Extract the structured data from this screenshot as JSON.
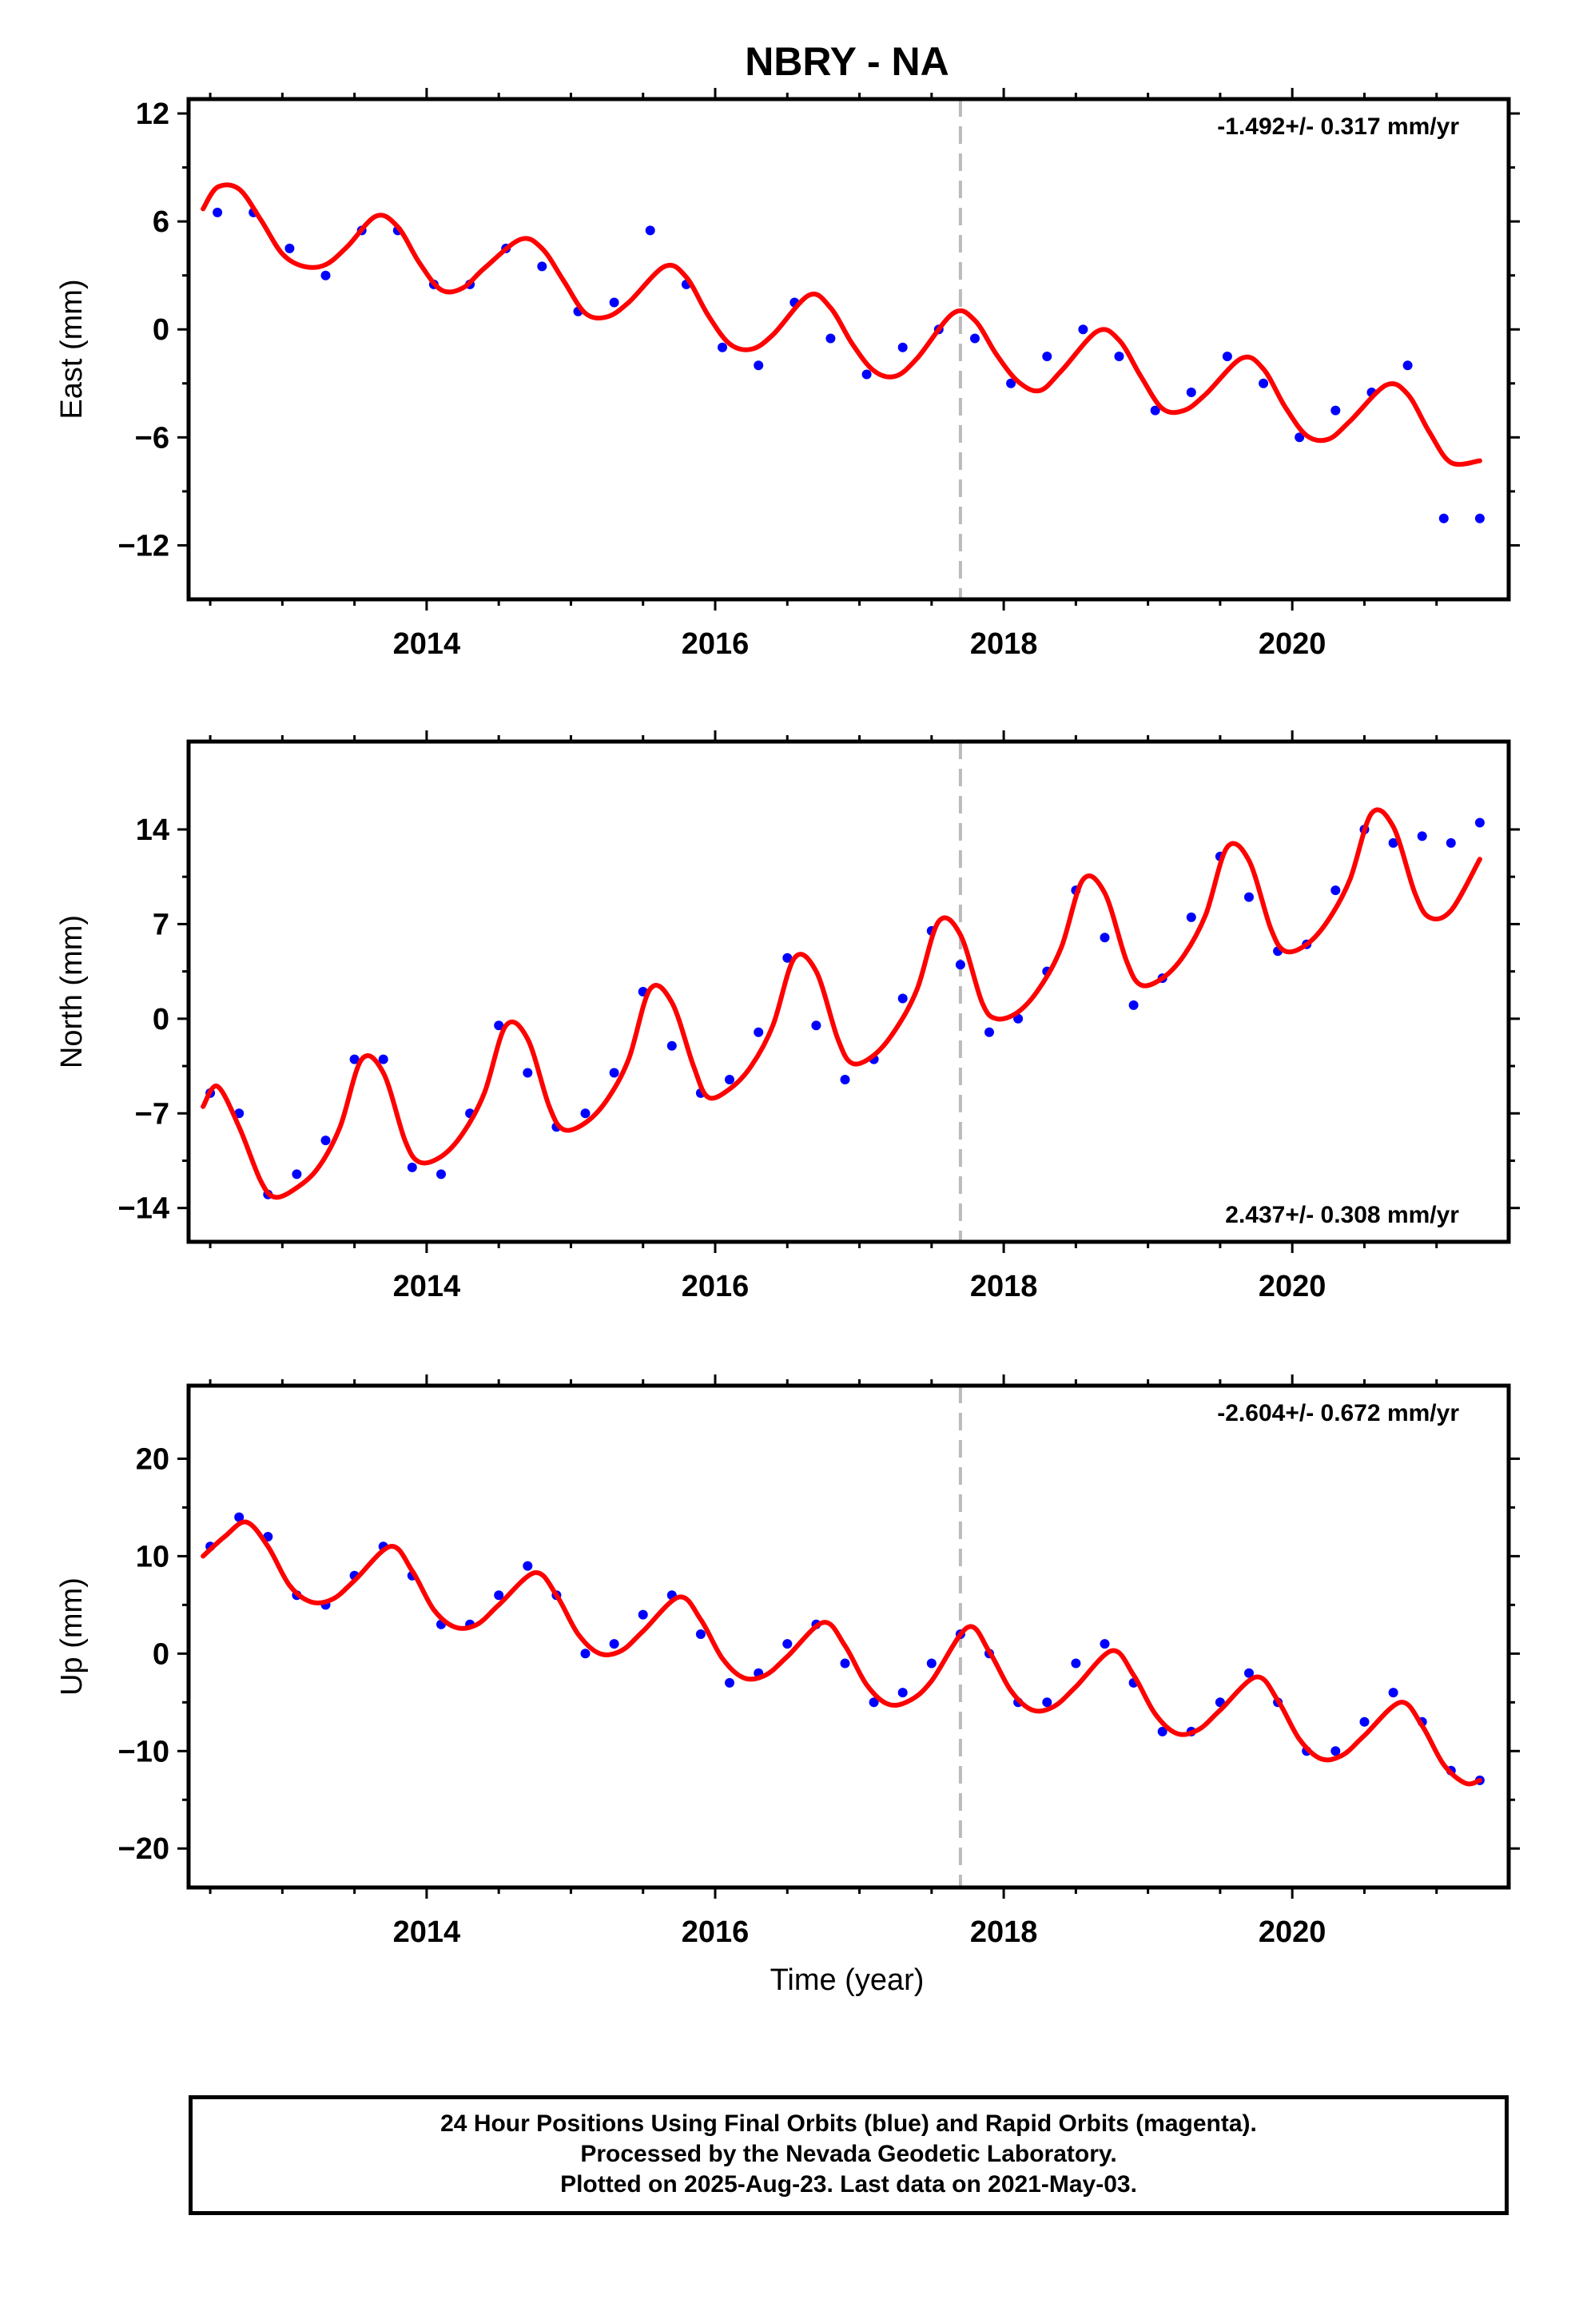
{
  "title": "NBRY - NA",
  "xlabel": "Time (year)",
  "footer": {
    "line1": "24 Hour Positions Using Final Orbits (blue) and Rapid Orbits (magenta).",
    "line2": "Processed by the Nevada Geodetic Laboratory.",
    "line3": "Plotted on 2025-Aug-23. Last data on 2021-May-03."
  },
  "colors": {
    "points": "#0000ff",
    "fit": "#ff0000",
    "event_line": "#bbbbbb"
  },
  "chart_data": [
    {
      "type": "scatter",
      "ylabel": "East (mm)",
      "rate_label": "-1.492+/- 0.317 mm/yr",
      "rate_position": "top-right",
      "xlim": [
        2012.35,
        2021.5
      ],
      "ylim": [
        -15,
        12.8
      ],
      "xticks": [
        2014,
        2016,
        2018,
        2020
      ],
      "yticks": [
        12,
        6,
        0,
        -6,
        -12
      ],
      "event_line_x": 2017.7,
      "series": [
        {
          "type": "scatter",
          "x": [
            2012.55,
            2012.8,
            2013.05,
            2013.3,
            2013.55,
            2013.8,
            2014.05,
            2014.3,
            2014.55,
            2014.8,
            2015.05,
            2015.3,
            2015.55,
            2015.8,
            2016.05,
            2016.3,
            2016.55,
            2016.8,
            2017.05,
            2017.3,
            2017.55,
            2017.8,
            2018.05,
            2018.3,
            2018.55,
            2018.8,
            2019.05,
            2019.3,
            2019.55,
            2019.8,
            2020.05,
            2020.3,
            2020.55,
            2020.8,
            2021.05,
            2021.3
          ],
          "y": [
            6.5,
            6.5,
            4.5,
            3,
            5.5,
            5.5,
            2.5,
            2.5,
            4.5,
            3.5,
            1,
            1.5,
            5.5,
            2.5,
            -1,
            -2,
            1.5,
            -0.5,
            -2.5,
            -1,
            0,
            -0.5,
            -3,
            -1.5,
            0,
            -1.5,
            -4.5,
            -3.5,
            -1.5,
            -3,
            -6,
            -4.5,
            -3.5,
            -2,
            -10.5,
            -10.5
          ]
        },
        {
          "type": "line",
          "x": [
            2012.45,
            2012.55,
            2012.7,
            2012.85,
            2013.0,
            2013.15,
            2013.3,
            2013.45,
            2013.65,
            2013.8,
            2013.95,
            2014.1,
            2014.25,
            2014.4,
            2014.65,
            2014.8,
            2014.95,
            2015.1,
            2015.25,
            2015.4,
            2015.65,
            2015.8,
            2015.95,
            2016.1,
            2016.25,
            2016.4,
            2016.65,
            2016.8,
            2016.95,
            2017.1,
            2017.25,
            2017.4,
            2017.65,
            2017.8,
            2017.95,
            2018.1,
            2018.25,
            2018.4,
            2018.65,
            2018.8,
            2018.95,
            2019.1,
            2019.25,
            2019.4,
            2019.65,
            2019.8,
            2019.95,
            2020.1,
            2020.25,
            2020.4,
            2020.65,
            2020.8,
            2020.95,
            2021.1,
            2021.3
          ],
          "y": [
            6.7,
            7.9,
            7.8,
            6.1,
            4.2,
            3.5,
            3.6,
            4.6,
            6.3,
            5.7,
            3.7,
            2.2,
            2.3,
            3.4,
            5.0,
            4.5,
            2.7,
            0.9,
            0.7,
            1.5,
            3.5,
            2.9,
            0.8,
            -0.8,
            -1.1,
            -0.3,
            1.9,
            1.2,
            -0.8,
            -2.3,
            -2.6,
            -1.6,
            0.9,
            0.5,
            -1.4,
            -2.9,
            -3.4,
            -2.3,
            -0.1,
            -0.6,
            -2.6,
            -4.4,
            -4.5,
            -3.6,
            -1.6,
            -2.2,
            -4.3,
            -5.9,
            -6.1,
            -5.1,
            -3.1,
            -3.6,
            -5.7,
            -7.4,
            -7.3
          ]
        }
      ]
    },
    {
      "type": "scatter",
      "ylabel": "North (mm)",
      "rate_label": "2.437+/- 0.308 mm/yr",
      "rate_position": "bottom-right",
      "xlim": [
        2012.35,
        2021.5
      ],
      "ylim": [
        -16.5,
        20.5
      ],
      "xticks": [
        2014,
        2016,
        2018,
        2020
      ],
      "yticks": [
        14,
        7,
        0,
        -7,
        -14
      ],
      "event_line_x": 2017.7,
      "series": [
        {
          "type": "scatter",
          "x": [
            2012.5,
            2012.7,
            2012.9,
            2013.1,
            2013.3,
            2013.5,
            2013.7,
            2013.9,
            2014.1,
            2014.3,
            2014.5,
            2014.7,
            2014.9,
            2015.1,
            2015.3,
            2015.5,
            2015.7,
            2015.9,
            2016.1,
            2016.3,
            2016.5,
            2016.7,
            2016.9,
            2017.1,
            2017.3,
            2017.5,
            2017.7,
            2017.9,
            2018.1,
            2018.3,
            2018.5,
            2018.7,
            2018.9,
            2019.1,
            2019.3,
            2019.5,
            2019.7,
            2019.9,
            2020.1,
            2020.3,
            2020.5,
            2020.7,
            2020.9,
            2021.1,
            2021.3
          ],
          "y": [
            -5.5,
            -7,
            -13,
            -11.5,
            -9,
            -3,
            -3,
            -11,
            -11.5,
            -7,
            -0.5,
            -4,
            -8,
            -7,
            -4,
            2,
            -2,
            -5.5,
            -4.5,
            -1,
            4.5,
            -0.5,
            -4.5,
            -3,
            1.5,
            6.5,
            4,
            -1,
            0,
            3.5,
            9.5,
            6,
            1,
            3,
            7.5,
            12,
            9,
            5,
            5.5,
            9.5,
            14,
            13,
            13.5,
            13,
            14.5
          ]
        },
        {
          "type": "line",
          "x": [
            2012.45,
            2012.55,
            2012.7,
            2012.85,
            2012.95,
            2013.1,
            2013.25,
            2013.4,
            2013.55,
            2013.7,
            2013.85,
            2013.95,
            2014.1,
            2014.25,
            2014.4,
            2014.55,
            2014.7,
            2014.85,
            2014.95,
            2015.1,
            2015.25,
            2015.4,
            2015.55,
            2015.7,
            2015.85,
            2015.95,
            2016.1,
            2016.25,
            2016.4,
            2016.55,
            2016.7,
            2016.85,
            2016.95,
            2017.1,
            2017.25,
            2017.4,
            2017.55,
            2017.7,
            2017.85,
            2017.95,
            2018.1,
            2018.25,
            2018.4,
            2018.55,
            2018.7,
            2018.85,
            2018.95,
            2019.1,
            2019.25,
            2019.4,
            2019.55,
            2019.7,
            2019.85,
            2019.95,
            2020.1,
            2020.25,
            2020.4,
            2020.55,
            2020.7,
            2020.85,
            2020.95,
            2021.1,
            2021.3
          ],
          "y": [
            -6.5,
            -5,
            -8,
            -12,
            -13.2,
            -12.5,
            -11,
            -8,
            -3,
            -4,
            -9,
            -10.6,
            -10.2,
            -8.5,
            -5.5,
            -0.5,
            -1.5,
            -6.5,
            -8.2,
            -7.7,
            -6,
            -3,
            2.2,
            1.2,
            -3.5,
            -5.8,
            -5.2,
            -3.5,
            -0.5,
            4.5,
            3.5,
            -1.5,
            -3.3,
            -2.7,
            -0.8,
            2.2,
            7.2,
            6.2,
            1.2,
            0,
            0.5,
            2.3,
            5.3,
            10.3,
            9.3,
            4.3,
            2.5,
            3,
            4.7,
            7.7,
            12.7,
            11.7,
            6.7,
            5,
            5.5,
            7.3,
            10.3,
            15.2,
            14.2,
            9.3,
            7.5,
            8,
            11.8
          ]
        }
      ]
    },
    {
      "type": "scatter",
      "ylabel": "Up (mm)",
      "rate_label": "-2.604+/- 0.672 mm/yr",
      "rate_position": "top-right",
      "xlim": [
        2012.35,
        2021.5
      ],
      "ylim": [
        -24,
        27.5
      ],
      "xticks": [
        2014,
        2016,
        2018,
        2020
      ],
      "yticks": [
        20,
        10,
        0,
        -10,
        -20
      ],
      "event_line_x": 2017.7,
      "series": [
        {
          "type": "scatter",
          "x": [
            2012.5,
            2012.7,
            2012.9,
            2013.1,
            2013.3,
            2013.5,
            2013.7,
            2013.9,
            2014.1,
            2014.3,
            2014.5,
            2014.7,
            2014.9,
            2015.1,
            2015.3,
            2015.5,
            2015.7,
            2015.9,
            2016.1,
            2016.3,
            2016.5,
            2016.7,
            2016.9,
            2017.1,
            2017.3,
            2017.5,
            2017.7,
            2017.9,
            2018.1,
            2018.3,
            2018.5,
            2018.7,
            2018.9,
            2019.1,
            2019.3,
            2019.5,
            2019.7,
            2019.9,
            2020.1,
            2020.3,
            2020.5,
            2020.7,
            2020.9,
            2021.1,
            2021.3
          ],
          "y": [
            11,
            14,
            12,
            6,
            5,
            8,
            11,
            8,
            3,
            3,
            6,
            9,
            6,
            0,
            1,
            4,
            6,
            2,
            -3,
            -2,
            1,
            3,
            -1,
            -5,
            -4,
            -1,
            2,
            0,
            -5,
            -5,
            -1,
            1,
            -3,
            -8,
            -8,
            -5,
            -2,
            -5,
            -10,
            -10,
            -7,
            -4,
            -7,
            -12,
            -13
          ]
        },
        {
          "type": "line",
          "x": [
            2012.45,
            2012.6,
            2012.75,
            2012.9,
            2013.05,
            2013.2,
            2013.35,
            2013.5,
            2013.75,
            2013.9,
            2014.05,
            2014.2,
            2014.35,
            2014.5,
            2014.75,
            2014.9,
            2015.05,
            2015.2,
            2015.35,
            2015.5,
            2015.75,
            2015.9,
            2016.05,
            2016.2,
            2016.35,
            2016.5,
            2016.75,
            2016.9,
            2017.05,
            2017.2,
            2017.35,
            2017.5,
            2017.75,
            2017.9,
            2018.05,
            2018.2,
            2018.35,
            2018.5,
            2018.75,
            2018.9,
            2019.05,
            2019.2,
            2019.35,
            2019.5,
            2019.75,
            2019.9,
            2020.05,
            2020.2,
            2020.35,
            2020.5,
            2020.75,
            2020.9,
            2021.05,
            2021.2,
            2021.3
          ],
          "y": [
            10,
            12,
            13.5,
            11,
            7,
            5.3,
            5.6,
            7.5,
            11,
            8.5,
            4.5,
            2.7,
            3,
            5,
            8.3,
            6,
            2,
            0,
            0.3,
            2.3,
            5.8,
            3.5,
            -0.5,
            -2.5,
            -2.2,
            -0.3,
            3.2,
            0.8,
            -3.2,
            -5.2,
            -4.8,
            -2.8,
            2.7,
            0.2,
            -3.8,
            -5.8,
            -5.4,
            -3.4,
            0.3,
            -2.2,
            -6.2,
            -8.2,
            -7.8,
            -5.8,
            -2.4,
            -4.8,
            -8.8,
            -10.8,
            -10.4,
            -8.4,
            -5,
            -7.4,
            -11.4,
            -13.3,
            -13
          ]
        }
      ]
    }
  ]
}
